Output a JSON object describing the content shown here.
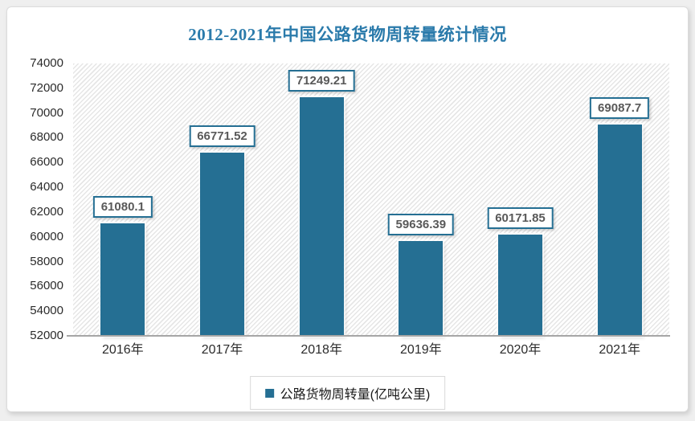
{
  "chart_data": {
    "type": "bar",
    "title": "2012-2021年中国公路货物周转量统计情况",
    "categories": [
      "2016年",
      "2017年",
      "2018年",
      "2019年",
      "2020年",
      "2021年"
    ],
    "values": [
      61080.1,
      66771.52,
      71249.21,
      59636.39,
      60171.85,
      69087.7
    ],
    "value_labels": [
      "61080.1",
      "66771.52",
      "71249.21",
      "59636.39",
      "60171.85",
      "69087.7"
    ],
    "series_name": "公路货物周转量(亿吨公里)",
    "xlabel": "",
    "ylabel": "",
    "ylim": [
      52000,
      74000
    ],
    "ytick_step": 2000,
    "yticks": [
      74000,
      72000,
      70000,
      68000,
      66000,
      64000,
      62000,
      60000,
      58000,
      56000,
      54000,
      52000
    ],
    "grid": false,
    "legend_position": "bottom",
    "plot_background": "diagonal-hatch",
    "colors": {
      "bar": "#256F93",
      "title": "#2B7BAB",
      "value_label_text": "#595959",
      "value_label_border": "#256F93",
      "tick_text": "#2B2B2B",
      "axis_line": "#A6A6A6",
      "hatch_line": "#E6E6E6",
      "legend_border": "#D9D9D9"
    }
  }
}
